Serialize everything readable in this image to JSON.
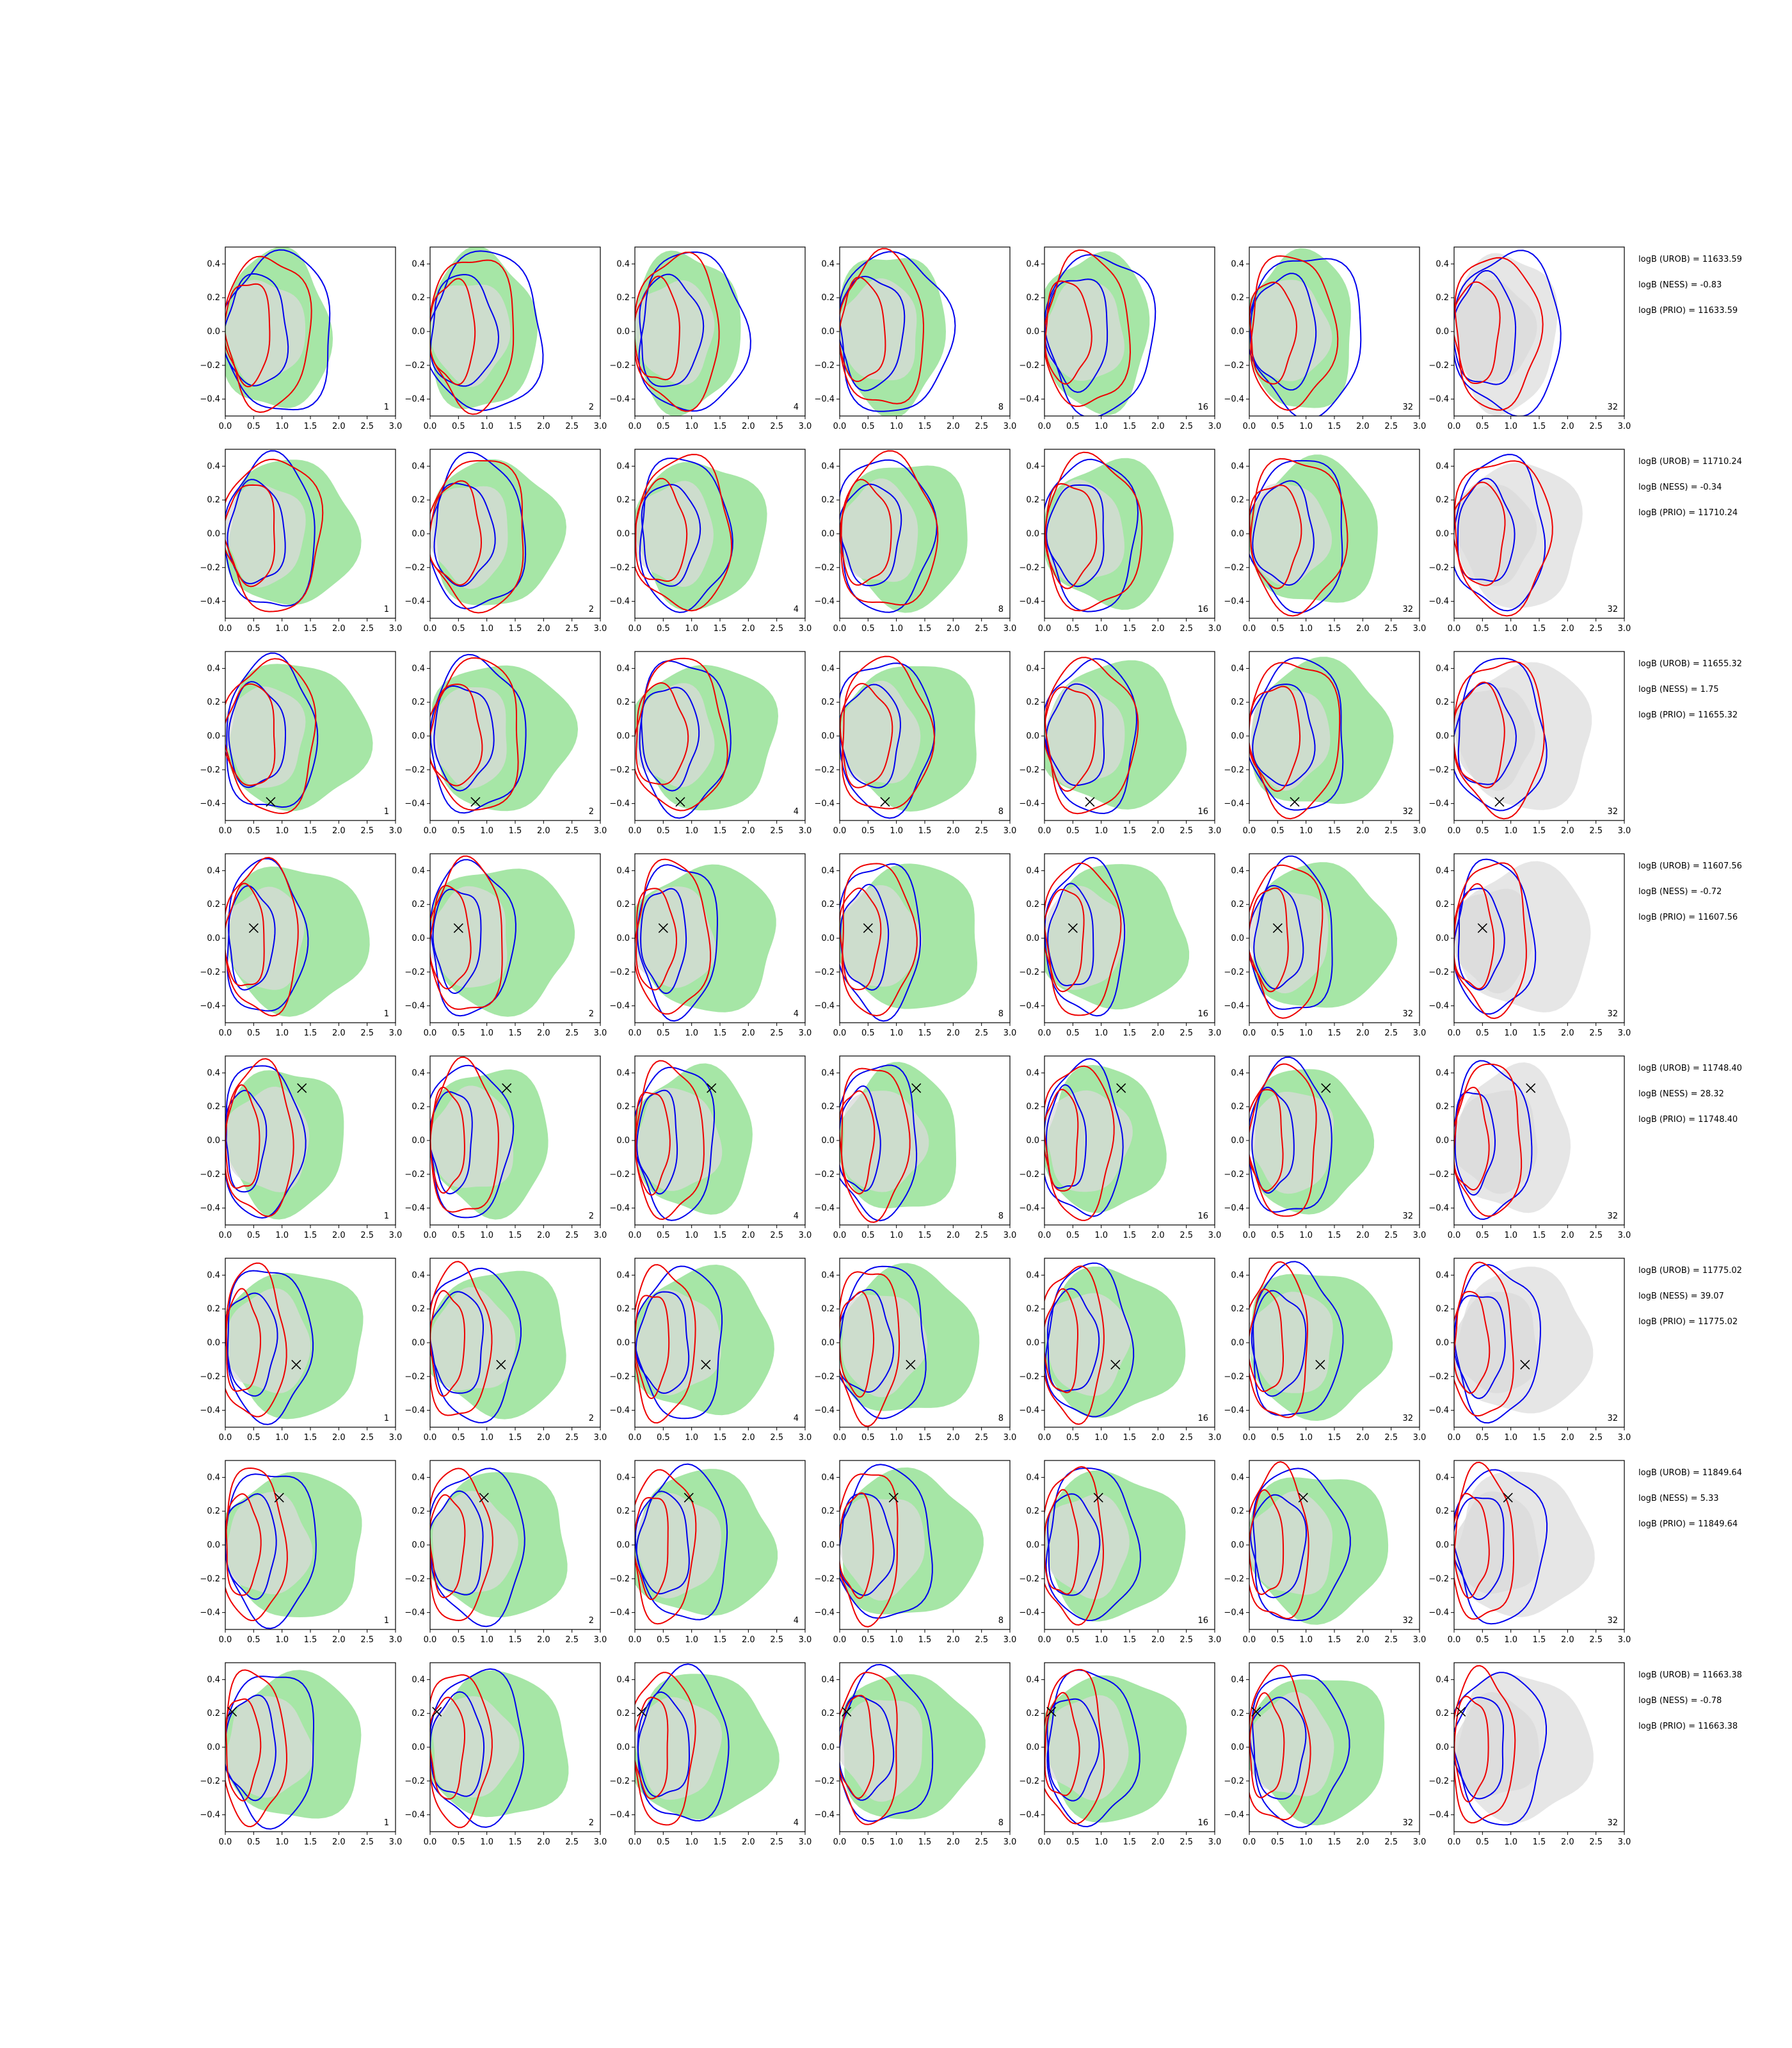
{
  "chart_data": {
    "type": "contour-grid",
    "rows": 8,
    "cols": 7,
    "xlim": [
      0.0,
      3.0
    ],
    "ylim": [
      -0.5,
      0.5
    ],
    "x_ticks": [
      "0.0",
      "0.5",
      "1.0",
      "1.5",
      "2.0",
      "2.5",
      "3.0"
    ],
    "x_tick_values": [
      0.0,
      0.5,
      1.0,
      1.5,
      2.0,
      2.5,
      3.0
    ],
    "y_ticks": [
      "0.4",
      "0.2",
      "0.0",
      "−0.2",
      "−0.4"
    ],
    "y_tick_values": [
      0.4,
      0.2,
      0.0,
      -0.2,
      -0.4
    ],
    "colors": {
      "green_fill": "#a6e6a6",
      "gray_fill": "#d9d9d9",
      "prior_fill": "#e6e6e6",
      "blue_line": "#0000ee",
      "red_line": "#ee0000",
      "marker": "#000000"
    },
    "panel_labels": [
      [
        "1",
        "2",
        "4",
        "8",
        "16",
        "32",
        "32"
      ],
      [
        "1",
        "2",
        "4",
        "8",
        "16",
        "32",
        "32"
      ],
      [
        "1",
        "2",
        "4",
        "8",
        "16",
        "32",
        "32"
      ],
      [
        "1",
        "2",
        "4",
        "8",
        "16",
        "32",
        "32"
      ],
      [
        "1",
        "2",
        "4",
        "8",
        "16",
        "32",
        "32"
      ],
      [
        "1",
        "2",
        "4",
        "8",
        "16",
        "32",
        "32"
      ],
      [
        "1",
        "2",
        "4",
        "8",
        "16",
        "32",
        "32"
      ],
      [
        "1",
        "2",
        "4",
        "8",
        "16",
        "32",
        "32"
      ]
    ],
    "markers": [
      null,
      null,
      {
        "x": 0.8,
        "y": -0.39
      },
      {
        "x": 0.5,
        "y": 0.06
      },
      {
        "x": 1.35,
        "y": 0.31
      },
      {
        "x": 1.25,
        "y": -0.13
      },
      {
        "x": 0.95,
        "y": 0.28
      },
      {
        "x": 0.12,
        "y": 0.21
      }
    ],
    "stats": [
      [
        "logB (UROB) = 11633.59",
        "logB (NESS) = -0.83",
        "logB (PRIO) = 11633.59"
      ],
      [
        "logB (UROB) = 11710.24",
        "logB (NESS) = -0.34",
        "logB (PRIO) = 11710.24"
      ],
      [
        "logB (UROB) = 11655.32",
        "logB (NESS) = 1.75",
        "logB (PRIO) = 11655.32"
      ],
      [
        "logB (UROB) = 11607.56",
        "logB (NESS) = -0.72",
        "logB (PRIO) = 11607.56"
      ],
      [
        "logB (UROB) = 11748.40",
        "logB (NESS) = 28.32",
        "logB (PRIO) = 11748.40"
      ],
      [
        "logB (UROB) = 11775.02",
        "logB (NESS) = 39.07",
        "logB (PRIO) = 11775.02"
      ],
      [
        "logB (UROB) = 11849.64",
        "logB (NESS) = 5.33",
        "logB (PRIO) = 11849.64"
      ],
      [
        "logB (UROB) = 11663.38",
        "logB (NESS) = -0.78",
        "logB (PRIO) = 11663.38"
      ]
    ],
    "contour_shapes": {
      "note_units": "ellipse centres and radii in data units (x, y)",
      "green": [
        [
          [
            0.9,
            0.0,
            0.95,
            0.47
          ]
        ],
        [
          [
            1.15,
            0.0,
            1.15,
            0.43
          ]
        ],
        [
          [
            1.25,
            0.0,
            1.25,
            0.43
          ]
        ],
        [
          [
            1.25,
            0.0,
            1.25,
            0.43
          ]
        ],
        [
          [
            1.05,
            0.0,
            1.05,
            0.43
          ]
        ],
        [
          [
            1.2,
            0.0,
            1.25,
            0.43
          ]
        ],
        [
          [
            1.2,
            0.0,
            1.25,
            0.43
          ]
        ],
        [
          [
            1.2,
            0.0,
            1.25,
            0.43
          ]
        ]
      ],
      "gray": [
        [
          [
            0.7,
            0.0,
            0.7,
            0.3
          ]
        ],
        [
          [
            0.7,
            0.0,
            0.7,
            0.3
          ]
        ],
        [
          [
            0.7,
            0.0,
            0.7,
            0.3
          ]
        ],
        [
          [
            0.7,
            0.0,
            0.7,
            0.3
          ]
        ],
        [
          [
            0.75,
            0.0,
            0.75,
            0.3
          ]
        ],
        [
          [
            0.75,
            0.0,
            0.75,
            0.3
          ]
        ],
        [
          [
            0.75,
            0.0,
            0.75,
            0.3
          ]
        ],
        [
          [
            0.75,
            0.0,
            0.75,
            0.3
          ]
        ]
      ],
      "blue": [
        [
          [
            0.95,
            -0.01,
            0.95,
            0.47
          ],
          [
            0.55,
            0.0,
            0.55,
            0.33
          ]
        ],
        [
          [
            0.8,
            0.0,
            0.8,
            0.45
          ],
          [
            0.55,
            0.0,
            0.5,
            0.3
          ]
        ],
        [
          [
            0.8,
            0.0,
            0.8,
            0.45
          ],
          [
            0.55,
            0.0,
            0.5,
            0.3
          ]
        ],
        [
          [
            0.7,
            0.0,
            0.7,
            0.45
          ],
          [
            0.45,
            0.0,
            0.4,
            0.3
          ]
        ],
        [
          [
            0.65,
            0.0,
            0.7,
            0.45
          ],
          [
            0.35,
            0.0,
            0.35,
            0.3
          ]
        ],
        [
          [
            0.75,
            0.0,
            0.75,
            0.45
          ],
          [
            0.45,
            0.0,
            0.45,
            0.3
          ]
        ],
        [
          [
            0.8,
            0.0,
            0.8,
            0.45
          ],
          [
            0.45,
            0.0,
            0.45,
            0.3
          ]
        ],
        [
          [
            0.8,
            0.0,
            0.8,
            0.45
          ],
          [
            0.45,
            0.0,
            0.45,
            0.3
          ]
        ]
      ],
      "red": [
        [
          [
            0.75,
            0.0,
            0.75,
            0.45
          ],
          [
            0.4,
            0.0,
            0.4,
            0.3
          ]
        ],
        [
          [
            0.85,
            0.0,
            0.85,
            0.45
          ],
          [
            0.45,
            0.0,
            0.45,
            0.3
          ]
        ],
        [
          [
            0.8,
            0.0,
            0.8,
            0.45
          ],
          [
            0.45,
            0.0,
            0.45,
            0.3
          ]
        ],
        [
          [
            0.65,
            0.0,
            0.65,
            0.45
          ],
          [
            0.35,
            0.0,
            0.35,
            0.3
          ]
        ],
        [
          [
            0.6,
            0.0,
            0.6,
            0.45
          ],
          [
            0.3,
            0.0,
            0.3,
            0.3
          ]
        ],
        [
          [
            0.5,
            0.0,
            0.55,
            0.45
          ],
          [
            0.3,
            0.0,
            0.3,
            0.3
          ]
        ],
        [
          [
            0.5,
            0.0,
            0.55,
            0.45
          ],
          [
            0.3,
            0.0,
            0.3,
            0.3
          ]
        ],
        [
          [
            0.5,
            0.0,
            0.55,
            0.45
          ],
          [
            0.3,
            0.0,
            0.3,
            0.3
          ]
        ]
      ]
    }
  }
}
